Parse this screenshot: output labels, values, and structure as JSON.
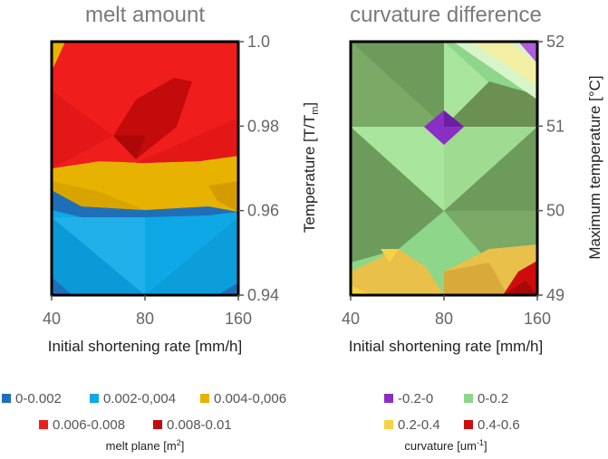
{
  "chart_data": [
    {
      "type": "heatmap",
      "title": "melt amount",
      "xlabel": "Initial shortening rate [mm/h]",
      "ylabel_right": "Temperature [T/T",
      "ylabel_right_sub": "m",
      "ylabel_right_end": "]",
      "x_ticks": [
        "40",
        "80",
        "160"
      ],
      "y_ticks": [
        "0.94",
        "0.96",
        "0.98",
        "1.0"
      ],
      "ylim": [
        0.94,
        1.0
      ],
      "legend": {
        "title": "melt plane",
        "unit": "[m",
        "unit_sup": "2",
        "unit_end": "]",
        "entries": [
          {
            "label": "0-0.002",
            "color": "#1f6fb8"
          },
          {
            "label": "0.002-0,004",
            "color": "#0ea8e6"
          },
          {
            "label": "0.004-0,006",
            "color": "#e8b200"
          },
          {
            "label": "0.006-0.008",
            "color": "#f01d1d"
          },
          {
            "label": "0.008-0.01",
            "color": "#c40b0b"
          }
        ]
      },
      "bands": [
        {
          "range": [
            0.94,
            0.96
          ],
          "category": "0.002-0,004"
        },
        {
          "range": [
            0.96,
            0.972
          ],
          "category": "0.004-0,006"
        },
        {
          "range": [
            0.972,
            1.0
          ],
          "category": "0.006-0.008"
        },
        {
          "peak_at": [
            80,
            0.978
          ],
          "category": "0.008-0.01"
        }
      ]
    },
    {
      "type": "heatmap",
      "title": "curvature difference",
      "xlabel": "Initial shortening rate [mm/h]",
      "ylabel_right": "Maximum temperature   [°C]",
      "x_ticks": [
        "40",
        "80",
        "160"
      ],
      "y_ticks": [
        "49",
        "50",
        "51",
        "52"
      ],
      "ylim": [
        49,
        52
      ],
      "legend": {
        "title": "curvature",
        "unit": "[um",
        "unit_sup": "-1",
        "unit_end": "]",
        "entries": [
          {
            "label": "-0.2-0",
            "color": "#8a2fc4"
          },
          {
            "label": "0-0.2",
            "color": "#8ed68a"
          },
          {
            "label": "0.2-0.4",
            "color": "#f6d245"
          },
          {
            "label": "0.4-0.6",
            "color": "#cf0c0c"
          }
        ]
      },
      "cells": [
        {
          "at": [
            80,
            51
          ],
          "category": "-0.2-0"
        },
        {
          "at": [
            160,
            52
          ],
          "category": "-0.2-0"
        },
        {
          "at": [
            160,
            49
          ],
          "category": "0.4-0.6"
        },
        {
          "region": "bottom",
          "category": "0.2-0.4"
        },
        {
          "region": "rest",
          "category": "0-0.2"
        }
      ]
    }
  ]
}
